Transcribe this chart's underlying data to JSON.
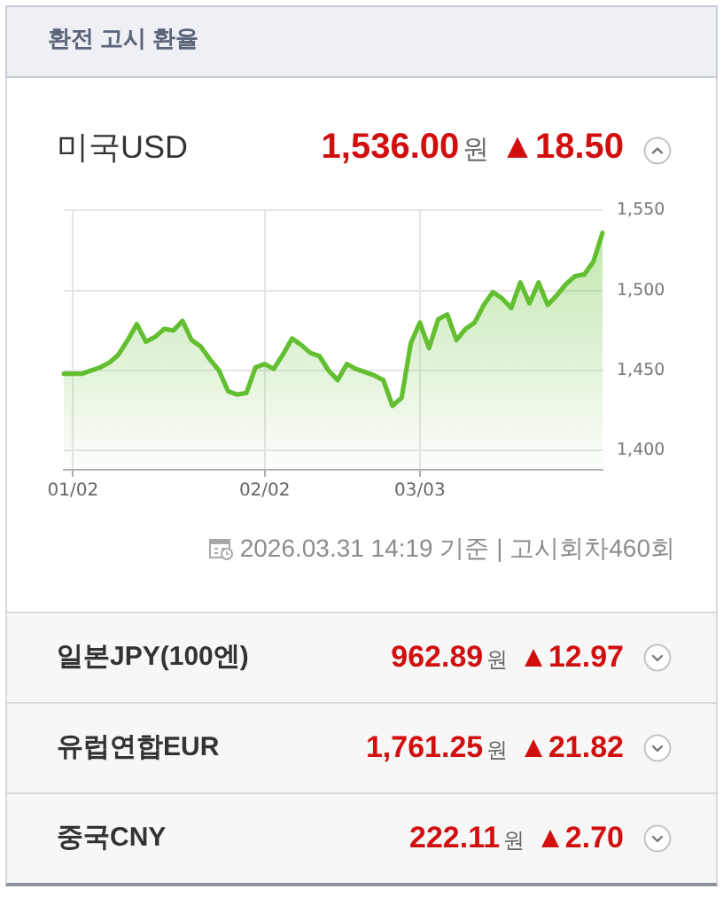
{
  "chart_data": {
    "type": "area",
    "title": "환전 고시 환율",
    "categories": [
      null,
      "01/02",
      null,
      null,
      null,
      null,
      null,
      null,
      null,
      null,
      null,
      null,
      null,
      null,
      null,
      null,
      null,
      null,
      null,
      null,
      null,
      null,
      "02/02",
      null,
      null,
      null,
      null,
      null,
      null,
      null,
      null,
      null,
      null,
      null,
      null,
      null,
      null,
      null,
      null,
      "03/03",
      null,
      null,
      null,
      null,
      null,
      null,
      null,
      null,
      null,
      null,
      null,
      null,
      null,
      null,
      null,
      null,
      null,
      null,
      null,
      null
    ],
    "values": [
      1448,
      1448,
      1448,
      1450,
      1452,
      1455,
      1460,
      1469,
      1479,
      1468,
      1471,
      1476,
      1475,
      1481,
      1469,
      1465,
      1457,
      1450,
      1437,
      1435,
      1436,
      1452,
      1454,
      1451,
      1460,
      1470,
      1466,
      1461,
      1459,
      1450,
      1444,
      1454,
      1451,
      1449,
      1447,
      1444,
      1428,
      1433,
      1467,
      1480,
      1464,
      1482,
      1485,
      1469,
      1476,
      1480,
      1491,
      1499,
      1495,
      1489,
      1505,
      1492,
      1505,
      1491,
      1497,
      1504,
      1509,
      1510,
      1518,
      1536
    ],
    "color": "#62bf2f",
    "ylim": [
      1388,
      1550
    ],
    "yticks": [
      {
        "value": 1400,
        "label": "1,400"
      },
      {
        "value": 1450,
        "label": "1,450"
      },
      {
        "value": 1500,
        "label": "1,500"
      },
      {
        "value": 1550,
        "label": "1,550"
      }
    ],
    "grid": true,
    "annotations": [
      "미국USD",
      "1,536.00",
      "원",
      "▲18.50",
      "2026.03.31 14:19 기준 | 고시회차460회",
      "일본JPY(100엔)",
      "962.89",
      "원",
      "▲12.97",
      "유럽연합EUR",
      "1,761.25",
      "원",
      "▲21.82",
      "중국CNY",
      "222.11",
      "원",
      "▲2.70"
    ]
  }
}
